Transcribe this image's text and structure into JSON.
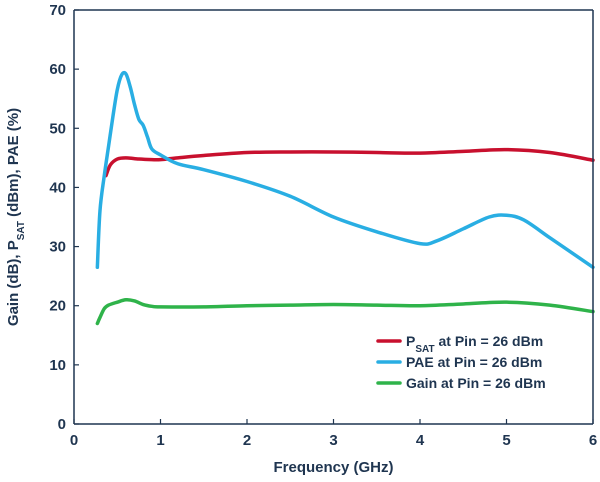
{
  "chart_data": {
    "type": "line",
    "title": "",
    "xlabel": "Frequency  (GHz)",
    "ylabel": {
      "prefix": "Gain (dB), P",
      "sub": "SAT",
      "suffix": " (dBm), PAE (%)"
    },
    "xlim": [
      0,
      6
    ],
    "ylim": [
      0,
      70
    ],
    "xticks": [
      0,
      1,
      2,
      3,
      4,
      5,
      6
    ],
    "yticks": [
      0,
      10,
      20,
      30,
      40,
      50,
      60,
      70
    ],
    "grid": false,
    "legend_position": "bottom-right",
    "series": [
      {
        "id": "psat",
        "name": {
          "prefix": "P",
          "sub": "SAT",
          "suffix": " at Pin = 26 dBm"
        },
        "color": "#c8102e",
        "x": [
          0.37,
          0.42,
          0.5,
          0.6,
          0.75,
          0.9,
          1.0,
          1.2,
          1.5,
          2.0,
          2.5,
          3.0,
          3.5,
          4.0,
          4.5,
          5.0,
          5.5,
          6.0
        ],
        "y": [
          42.0,
          43.8,
          44.8,
          45.0,
          44.8,
          44.7,
          44.7,
          45.0,
          45.4,
          45.9,
          46.0,
          46.0,
          45.9,
          45.8,
          46.1,
          46.4,
          45.9,
          44.6
        ]
      },
      {
        "id": "pae",
        "name": {
          "prefix": "PAE at Pin = 26 dBm",
          "sub": "",
          "suffix": ""
        },
        "color": "#29aee3",
        "x": [
          0.27,
          0.3,
          0.35,
          0.4,
          0.45,
          0.5,
          0.55,
          0.6,
          0.65,
          0.7,
          0.75,
          0.8,
          0.85,
          0.9,
          1.0,
          1.2,
          1.5,
          2.0,
          2.5,
          3.0,
          3.5,
          4.0,
          4.2,
          4.5,
          4.8,
          5.0,
          5.2,
          5.5,
          5.8,
          6.0
        ],
        "y": [
          26.5,
          36.0,
          42.0,
          47.0,
          52.0,
          56.5,
          59.0,
          59.2,
          57.0,
          54.0,
          51.5,
          50.5,
          48.5,
          46.5,
          45.5,
          44.0,
          43.0,
          41.0,
          38.5,
          35.0,
          32.5,
          30.5,
          31.0,
          33.0,
          35.0,
          35.3,
          34.5,
          31.5,
          28.5,
          26.5
        ]
      },
      {
        "id": "gain",
        "name": {
          "prefix": "Gain at Pin = 26 dBm",
          "sub": "",
          "suffix": ""
        },
        "color": "#2fb34a",
        "x": [
          0.27,
          0.3,
          0.35,
          0.4,
          0.5,
          0.6,
          0.7,
          0.8,
          0.9,
          1.0,
          1.5,
          2.0,
          2.5,
          3.0,
          3.5,
          4.0,
          4.5,
          5.0,
          5.5,
          6.0
        ],
        "y": [
          17.0,
          18.0,
          19.5,
          20.1,
          20.6,
          21.0,
          20.8,
          20.2,
          19.9,
          19.8,
          19.8,
          20.0,
          20.1,
          20.2,
          20.1,
          20.0,
          20.3,
          20.6,
          20.1,
          19.0
        ]
      }
    ]
  }
}
